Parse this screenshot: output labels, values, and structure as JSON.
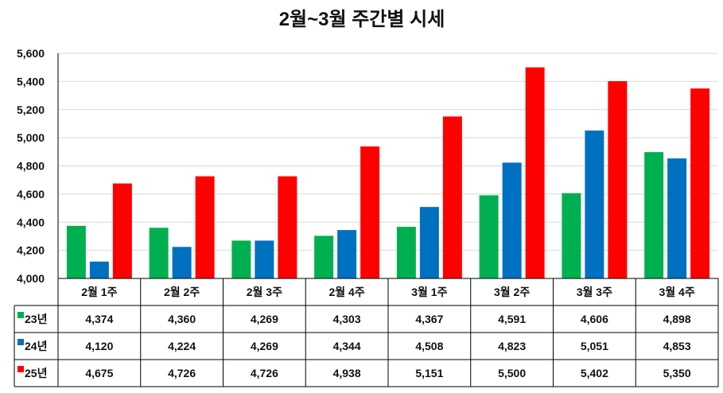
{
  "chart_data": {
    "type": "bar",
    "title": "2월~3월 주간별 시세",
    "categories": [
      "2월 1주",
      "2월 2주",
      "2월 3주",
      "2월 4주",
      "3월 1주",
      "3월 2주",
      "3월 3주",
      "3월 4주"
    ],
    "series": [
      {
        "name": "23년",
        "color": "#00b050",
        "values": [
          4374,
          4360,
          4269,
          4303,
          4367,
          4591,
          4606,
          4898
        ],
        "labels": [
          "4,374",
          "4,360",
          "4,269",
          "4,303",
          "4,367",
          "4,591",
          "4,606",
          "4,898"
        ]
      },
      {
        "name": "24년",
        "color": "#0070c0",
        "values": [
          4120,
          4224,
          4269,
          4344,
          4508,
          4823,
          5051,
          4853
        ],
        "labels": [
          "4,120",
          "4,224",
          "4,269",
          "4,344",
          "4,508",
          "4,823",
          "5,051",
          "4,853"
        ]
      },
      {
        "name": "25년",
        "color": "#ff0000",
        "values": [
          4675,
          4726,
          4726,
          4938,
          5151,
          5500,
          5402,
          5350
        ],
        "labels": [
          "4,675",
          "4,726",
          "4,726",
          "4,938",
          "5,151",
          "5,500",
          "5,402",
          "5,350"
        ]
      }
    ],
    "ylim": [
      4000,
      5600
    ],
    "yticks": [
      "4,000",
      "4,200",
      "4,400",
      "4,600",
      "4,800",
      "5,000",
      "5,200",
      "5,400",
      "5,600"
    ],
    "ytick_values": [
      4000,
      4200,
      4400,
      4600,
      4800,
      5000,
      5200,
      5400,
      5600
    ],
    "grid": true,
    "legend": "data-table",
    "data_table": true
  }
}
